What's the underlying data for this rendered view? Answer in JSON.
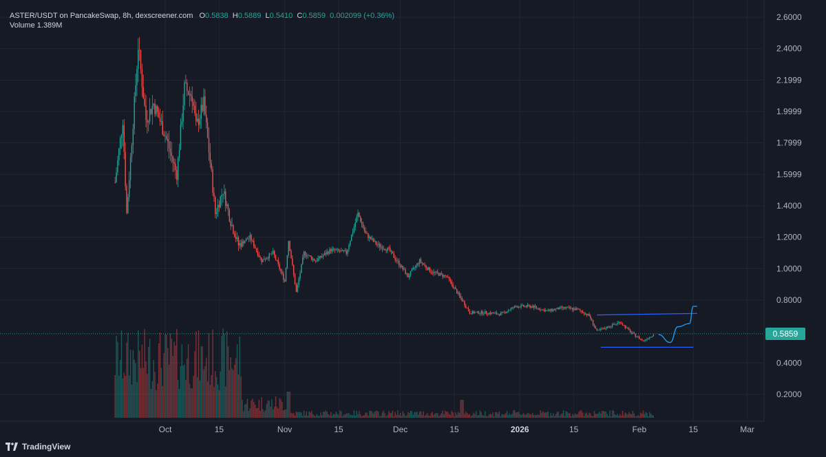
{
  "header": {
    "symbol_line": "ASTER/USDT on PancakeSwap, 8h, dexscreener.com",
    "open_label": "O",
    "open": "0.5838",
    "high_label": "H",
    "high": "0.5889",
    "low_label": "L",
    "low": "0.5410",
    "close_label": "C",
    "close": "0.5859",
    "change": "0.002099 (+0.36%)",
    "volume_label": "Volume",
    "volume": "1.389M"
  },
  "last_price_tag": "0.5859",
  "branding": {
    "name": "TradingView",
    "logo_icon": "tradingview-logo-icon"
  },
  "colors": {
    "background": "#161a25",
    "up": "#26a69a",
    "down": "#ef5350",
    "trendline": "#2962ff",
    "projection": "#2196f3"
  },
  "chart_data": {
    "type": "candlestick",
    "timeframe": "8h",
    "y_axis_ticks": [
      "2.6000",
      "2.4000",
      "2.1999",
      "1.9999",
      "1.7999",
      "1.5999",
      "1.4000",
      "1.2000",
      "1.0000",
      "0.8000",
      "0.4000",
      "0.2000"
    ],
    "x_axis_ticks": [
      {
        "label": "Oct",
        "bold": false
      },
      {
        "label": "15",
        "bold": false
      },
      {
        "label": "Nov",
        "bold": false
      },
      {
        "label": "15",
        "bold": false
      },
      {
        "label": "Dec",
        "bold": false
      },
      {
        "label": "15",
        "bold": false
      },
      {
        "label": "2026",
        "bold": true
      },
      {
        "label": "15",
        "bold": false
      },
      {
        "label": "Feb",
        "bold": false
      },
      {
        "label": "15",
        "bold": false
      },
      {
        "label": "Mar",
        "bold": false
      }
    ],
    "ylim": [
      0.2,
      2.6
    ],
    "last_price": 0.5859,
    "price_path_knots": [
      [
        "2025-09-17",
        1.55
      ],
      [
        "2025-09-19",
        1.95
      ],
      [
        "2025-09-20",
        1.35
      ],
      [
        "2025-09-22",
        2.05
      ],
      [
        "2025-09-23",
        2.42
      ],
      [
        "2025-09-25",
        1.95
      ],
      [
        "2025-09-27",
        2.05
      ],
      [
        "2025-09-30",
        1.85
      ],
      [
        "2025-10-03",
        1.6
      ],
      [
        "2025-10-05",
        2.15
      ],
      [
        "2025-10-07",
        2.1
      ],
      [
        "2025-10-08",
        1.9
      ],
      [
        "2025-10-10",
        2.05
      ],
      [
        "2025-10-12",
        1.6
      ],
      [
        "2025-10-13",
        1.35
      ],
      [
        "2025-10-15",
        1.5
      ],
      [
        "2025-10-17",
        1.3
      ],
      [
        "2025-10-19",
        1.15
      ],
      [
        "2025-10-22",
        1.2
      ],
      [
        "2025-10-25",
        1.05
      ],
      [
        "2025-10-28",
        1.1
      ],
      [
        "2025-10-31",
        0.92
      ],
      [
        "2025-11-01",
        1.18
      ],
      [
        "2025-11-03",
        0.85
      ],
      [
        "2025-11-05",
        1.1
      ],
      [
        "2025-11-08",
        1.05
      ],
      [
        "2025-11-12",
        1.12
      ],
      [
        "2025-11-16",
        1.1
      ],
      [
        "2025-11-19",
        1.35
      ],
      [
        "2025-11-21",
        1.22
      ],
      [
        "2025-11-24",
        1.15
      ],
      [
        "2025-11-27",
        1.12
      ],
      [
        "2025-11-30",
        1.02
      ],
      [
        "2025-12-02",
        0.95
      ],
      [
        "2025-12-05",
        1.05
      ],
      [
        "2025-12-08",
        0.98
      ],
      [
        "2025-12-12",
        0.95
      ],
      [
        "2025-12-16",
        0.8
      ],
      [
        "2025-12-18",
        0.72
      ],
      [
        "2025-12-22",
        0.72
      ],
      [
        "2025-12-26",
        0.71
      ],
      [
        "2025-12-30",
        0.76
      ],
      [
        "2026-01-03",
        0.76
      ],
      [
        "2026-01-07",
        0.73
      ],
      [
        "2026-01-11",
        0.75
      ],
      [
        "2026-01-15",
        0.74
      ],
      [
        "2026-01-18",
        0.7
      ],
      [
        "2026-01-20",
        0.6
      ],
      [
        "2026-01-23",
        0.63
      ],
      [
        "2026-01-26",
        0.66
      ],
      [
        "2026-01-29",
        0.59
      ],
      [
        "2026-02-01",
        0.54
      ],
      [
        "2026-02-04",
        0.5859
      ]
    ],
    "annotations": [
      {
        "type": "trendline",
        "from": [
          "2026-01-20",
          0.705
        ],
        "to": [
          "2026-02-15",
          0.715
        ]
      },
      {
        "type": "trendline",
        "from": [
          "2026-01-21",
          0.5
        ],
        "to": [
          "2026-02-14",
          0.5
        ]
      },
      {
        "type": "projection_curve",
        "points": [
          [
            "2026-02-05",
            0.58
          ],
          [
            "2026-02-08",
            0.53
          ],
          [
            "2026-02-10",
            0.63
          ],
          [
            "2026-02-13",
            0.65
          ],
          [
            "2026-02-14",
            0.76
          ],
          [
            "2026-02-15",
            0.76
          ]
        ]
      }
    ]
  }
}
